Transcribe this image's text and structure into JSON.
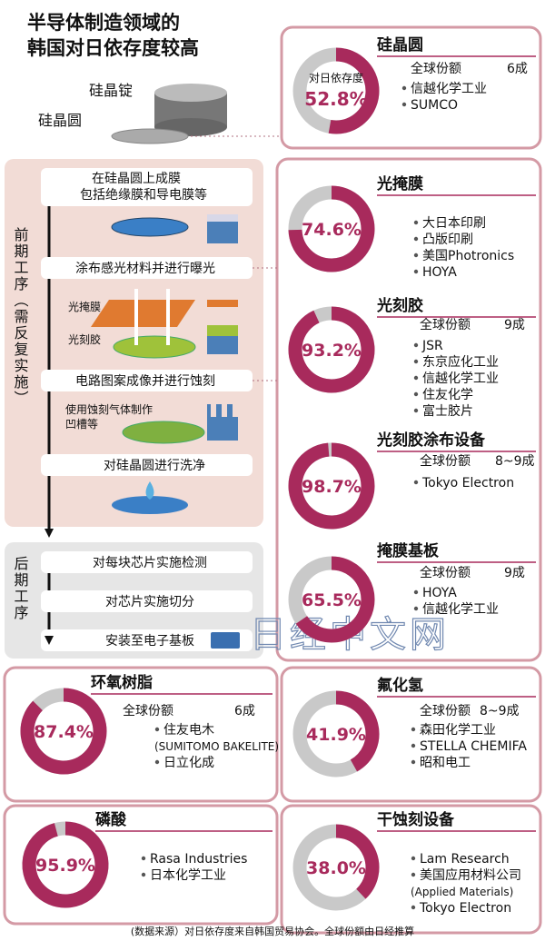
{
  "header": {
    "title": [
      "半导体制造领域的",
      "韩国对日依存度较高"
    ]
  },
  "process": {
    "ingot": "硅晶锭",
    "wafer": "硅晶圆",
    "front_label": "前期工序（需反复实施）",
    "front_steps": [
      [
        "在硅晶圆上成膜",
        "包括绝缘膜和导电膜等"
      ],
      [
        "涂布感光材料并进行曝光"
      ],
      [
        "电路图案成像并进行蚀刻"
      ],
      [
        "对硅晶圆进行洗净"
      ]
    ],
    "photomask": "光掩膜",
    "photoresist": "光刻胶",
    "etch_note": [
      "使用蚀刻气体制作",
      "凹槽等"
    ],
    "back_label": "后期工序",
    "back_steps": [
      "对每块芯片实施检测",
      "对芯片实施切分",
      "安装至电子基板"
    ]
  },
  "chart_data": [
    {
      "type": "pie",
      "title": "硅晶圆",
      "center_label": "对日依存度",
      "values": [
        52.8
      ],
      "value_labels": [
        "52.8%"
      ],
      "share_label": "全球份额",
      "share": "6成",
      "companies": [
        [
          "信越化学工业"
        ],
        [
          "SUMCO"
        ]
      ],
      "color": "#a82a5c"
    },
    {
      "type": "pie",
      "title": "光掩膜",
      "values": [
        74.6
      ],
      "value_labels": [
        "74.6%"
      ],
      "companies": [
        [
          "大日本印刷"
        ],
        [
          "凸版印刷"
        ],
        [
          "美国Photronics"
        ],
        [
          "HOYA"
        ]
      ],
      "color": "#a82a5c"
    },
    {
      "type": "pie",
      "title": "光刻胶",
      "values": [
        93.2
      ],
      "value_labels": [
        "93.2%"
      ],
      "share_label": "全球份额",
      "share": "9成",
      "companies": [
        [
          "JSR"
        ],
        [
          "东京应化工业"
        ],
        [
          "信越化学工业"
        ],
        [
          "住友化学"
        ],
        [
          "富士胶片"
        ]
      ],
      "color": "#a82a5c"
    },
    {
      "type": "pie",
      "title": "光刻胶涂布设备",
      "values": [
        98.7
      ],
      "value_labels": [
        "98.7%"
      ],
      "share_label": "全球份额",
      "share": "8~9成",
      "companies": [
        [
          "Tokyo Electron"
        ]
      ],
      "color": "#a82a5c"
    },
    {
      "type": "pie",
      "title": "掩膜基板",
      "values": [
        65.5
      ],
      "value_labels": [
        "65.5%"
      ],
      "share_label": "全球份额",
      "share": "9成",
      "companies": [
        [
          "HOYA"
        ],
        [
          "信越化学工业"
        ]
      ],
      "color": "#a82a5c"
    },
    {
      "type": "pie",
      "title": "环氧树脂",
      "values": [
        87.4
      ],
      "value_labels": [
        "87.4%"
      ],
      "share_label": "全球份额",
      "share": "6成",
      "companies": [
        [
          "住友电木",
          "(SUMITOMO BAKELITE)"
        ],
        [
          "日立化成"
        ]
      ],
      "color": "#a82a5c"
    },
    {
      "type": "pie",
      "title": "磷酸",
      "values": [
        95.9
      ],
      "value_labels": [
        "95.9%"
      ],
      "companies": [
        [
          "Rasa Industries"
        ],
        [
          "日本化学工业"
        ]
      ],
      "color": "#a82a5c"
    },
    {
      "type": "pie",
      "title": "氟化氢",
      "values": [
        41.9
      ],
      "value_labels": [
        "41.9%"
      ],
      "share_label": "全球份额",
      "share": "8~9成",
      "companies": [
        [
          "森田化学工业"
        ],
        [
          "STELLA CHEMIFA"
        ],
        [
          "昭和电工"
        ]
      ],
      "color": "#a82a5c"
    },
    {
      "type": "pie",
      "title": "干蚀刻设备",
      "values": [
        38.0
      ],
      "value_labels": [
        "38.0%"
      ],
      "companies": [
        [
          "Lam Research"
        ],
        [
          "美国应用材料公司",
          "(Applied Materials)"
        ],
        [
          "Tokyo Electron"
        ]
      ],
      "color": "#a82a5c"
    }
  ],
  "watermark": "日经中文网",
  "source": "(数据来源）对日依存度来自韩国贸易协会。全球份额由日经推算"
}
